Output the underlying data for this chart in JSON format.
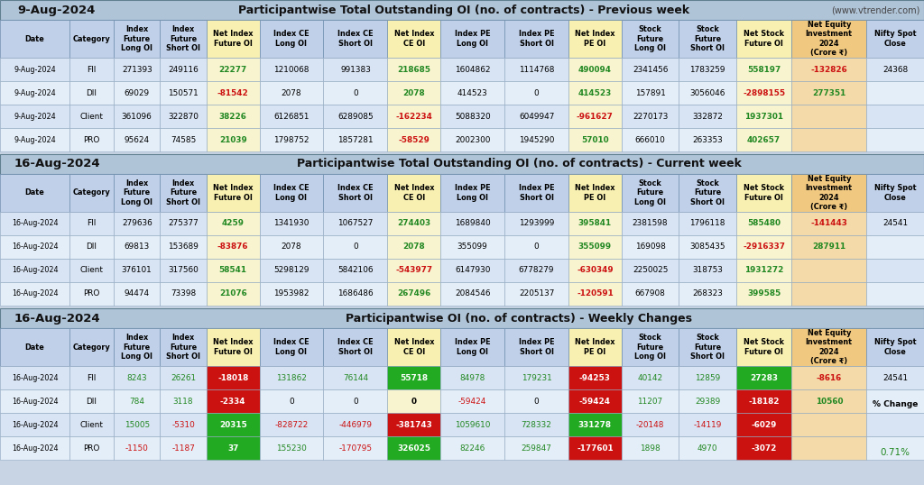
{
  "title1_date": "9-Aug-2024",
  "title1_main": "Participantwise Total Outstanding OI (no. of contracts) - Previous week",
  "title1_website": "(www.vtrender.com)",
  "title2_date": "16-Aug-2024",
  "title2_main": "Participantwise Total Outstanding OI (no. of contracts) - Current week",
  "title3_date": "16-Aug-2024",
  "title3_main": "Participantwise OI (no. of contracts) - Weekly Changes",
  "col_headers": [
    "Date",
    "Category",
    "Index\nFuture\nLong OI",
    "Index\nFuture\nShort OI",
    "Net Index\nFuture OI",
    "Index CE\nLong OI",
    "Index CE\nShort OI",
    "Net Index\nCE OI",
    "Index PE\nLong OI",
    "Index PE\nShort OI",
    "Net Index\nPE OI",
    "Stock\nFuture\nLong OI",
    "Stock\nFuture\nShort OI",
    "Net Stock\nFuture OI",
    "Net Equity\nInvestment\n2024\n(Crore ₹)",
    "Nifty Spot\nClose"
  ],
  "section1_rows": [
    [
      "9-Aug-2024",
      "FII",
      "271393",
      "249116",
      "22277",
      "1210068",
      "991383",
      "218685",
      "1604862",
      "1114768",
      "490094",
      "2341456",
      "1783259",
      "558197",
      "-132826",
      "24368"
    ],
    [
      "9-Aug-2024",
      "DII",
      "69029",
      "150571",
      "-81542",
      "2078",
      "0",
      "2078",
      "414523",
      "0",
      "414523",
      "157891",
      "3056046",
      "-2898155",
      "277351",
      ""
    ],
    [
      "9-Aug-2024",
      "Client",
      "361096",
      "322870",
      "38226",
      "6126851",
      "6289085",
      "-162234",
      "5088320",
      "6049947",
      "-961627",
      "2270173",
      "332872",
      "1937301",
      "",
      ""
    ],
    [
      "9-Aug-2024",
      "PRO",
      "95624",
      "74585",
      "21039",
      "1798752",
      "1857281",
      "-58529",
      "2002300",
      "1945290",
      "57010",
      "666010",
      "263353",
      "402657",
      "",
      ""
    ]
  ],
  "section2_rows": [
    [
      "16-Aug-2024",
      "FII",
      "279636",
      "275377",
      "4259",
      "1341930",
      "1067527",
      "274403",
      "1689840",
      "1293999",
      "395841",
      "2381598",
      "1796118",
      "585480",
      "-141443",
      "24541"
    ],
    [
      "16-Aug-2024",
      "DII",
      "69813",
      "153689",
      "-83876",
      "2078",
      "0",
      "2078",
      "355099",
      "0",
      "355099",
      "169098",
      "3085435",
      "-2916337",
      "287911",
      ""
    ],
    [
      "16-Aug-2024",
      "Client",
      "376101",
      "317560",
      "58541",
      "5298129",
      "5842106",
      "-543977",
      "6147930",
      "6778279",
      "-630349",
      "2250025",
      "318753",
      "1931272",
      "",
      ""
    ],
    [
      "16-Aug-2024",
      "PRO",
      "94474",
      "73398",
      "21076",
      "1953982",
      "1686486",
      "267496",
      "2084546",
      "2205137",
      "-120591",
      "667908",
      "268323",
      "399585",
      "",
      ""
    ]
  ],
  "section3_rows": [
    [
      "16-Aug-2024",
      "FII",
      "8243",
      "26261",
      "-18018",
      "131862",
      "76144",
      "55718",
      "84978",
      "179231",
      "-94253",
      "40142",
      "12859",
      "27283",
      "-8616",
      "24541"
    ],
    [
      "16-Aug-2024",
      "DII",
      "784",
      "3118",
      "-2334",
      "0",
      "0",
      "0",
      "-59424",
      "0",
      "-59424",
      "11207",
      "29389",
      "-18182",
      "10560",
      ""
    ],
    [
      "16-Aug-2024",
      "Client",
      "15005",
      "-5310",
      "20315",
      "-828722",
      "-446979",
      "-381743",
      "1059610",
      "728332",
      "331278",
      "-20148",
      "-14119",
      "-6029",
      "",
      ""
    ],
    [
      "16-Aug-2024",
      "PRO",
      "-1150",
      "-1187",
      "37",
      "155230",
      "-170795",
      "326025",
      "82246",
      "259847",
      "-177601",
      "1898",
      "4970",
      "-3072",
      "",
      ""
    ]
  ],
  "pct_change": "0.71%",
  "bg_color": "#c8d4e4",
  "title_bg": "#b0c4d8",
  "header_blue": "#c0d0e8",
  "header_yellow": "#f8f0b0",
  "header_orange": "#f0c880",
  "row_even": "#d8e4f4",
  "row_odd": "#e4eef8",
  "yellow_bg": "#f8f4d0",
  "orange_bg": "#f4daa8",
  "green_bg": "#22aa22",
  "red_bg": "#cc1111",
  "green_text": "#228822",
  "red_text": "#cc1111",
  "white_text": "#ffffff",
  "black_text": "#000000",
  "col_raw_widths": [
    63,
    40,
    42,
    42,
    48,
    58,
    58,
    48,
    58,
    58,
    48,
    52,
    52,
    50,
    68,
    52
  ]
}
